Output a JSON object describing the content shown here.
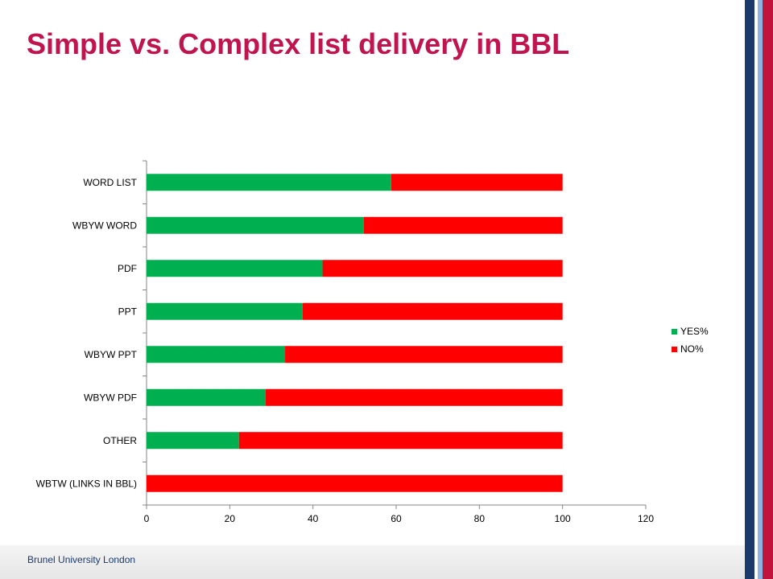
{
  "slide": {
    "title": "Simple vs. Complex list delivery in BBL",
    "footer": "Brunel University London"
  },
  "colors": {
    "title": "#c0144f",
    "yes": "#00b050",
    "no": "#ff0000",
    "stripe_navy": "#1b3a6b",
    "stripe_lightblue": "#8db3e2",
    "stripe_crimson": "#c0143c"
  },
  "chart_data": {
    "type": "bar",
    "orientation": "horizontal",
    "stacked": true,
    "title": "",
    "xlabel": "",
    "ylabel": "",
    "xlim": [
      0,
      120
    ],
    "xticks": [
      0,
      20,
      40,
      60,
      80,
      100,
      120
    ],
    "legend_position": "right",
    "categories": [
      "WORD LIST",
      "WBYW WORD",
      "PDF",
      "PPT",
      "WBYW PPT",
      "WBYW PDF",
      "OTHER",
      "WBTW (LINKS IN BBL)"
    ],
    "series": [
      {
        "name": "YES%",
        "color": "#00b050",
        "values": [
          58.8,
          52.2,
          42.3,
          37.5,
          33.3,
          28.6,
          22.2,
          0
        ]
      },
      {
        "name": "NO%",
        "color": "#ff0000",
        "values": [
          41.2,
          47.8,
          57.7,
          62.5,
          66.7,
          71.4,
          77.8,
          100
        ]
      }
    ]
  }
}
